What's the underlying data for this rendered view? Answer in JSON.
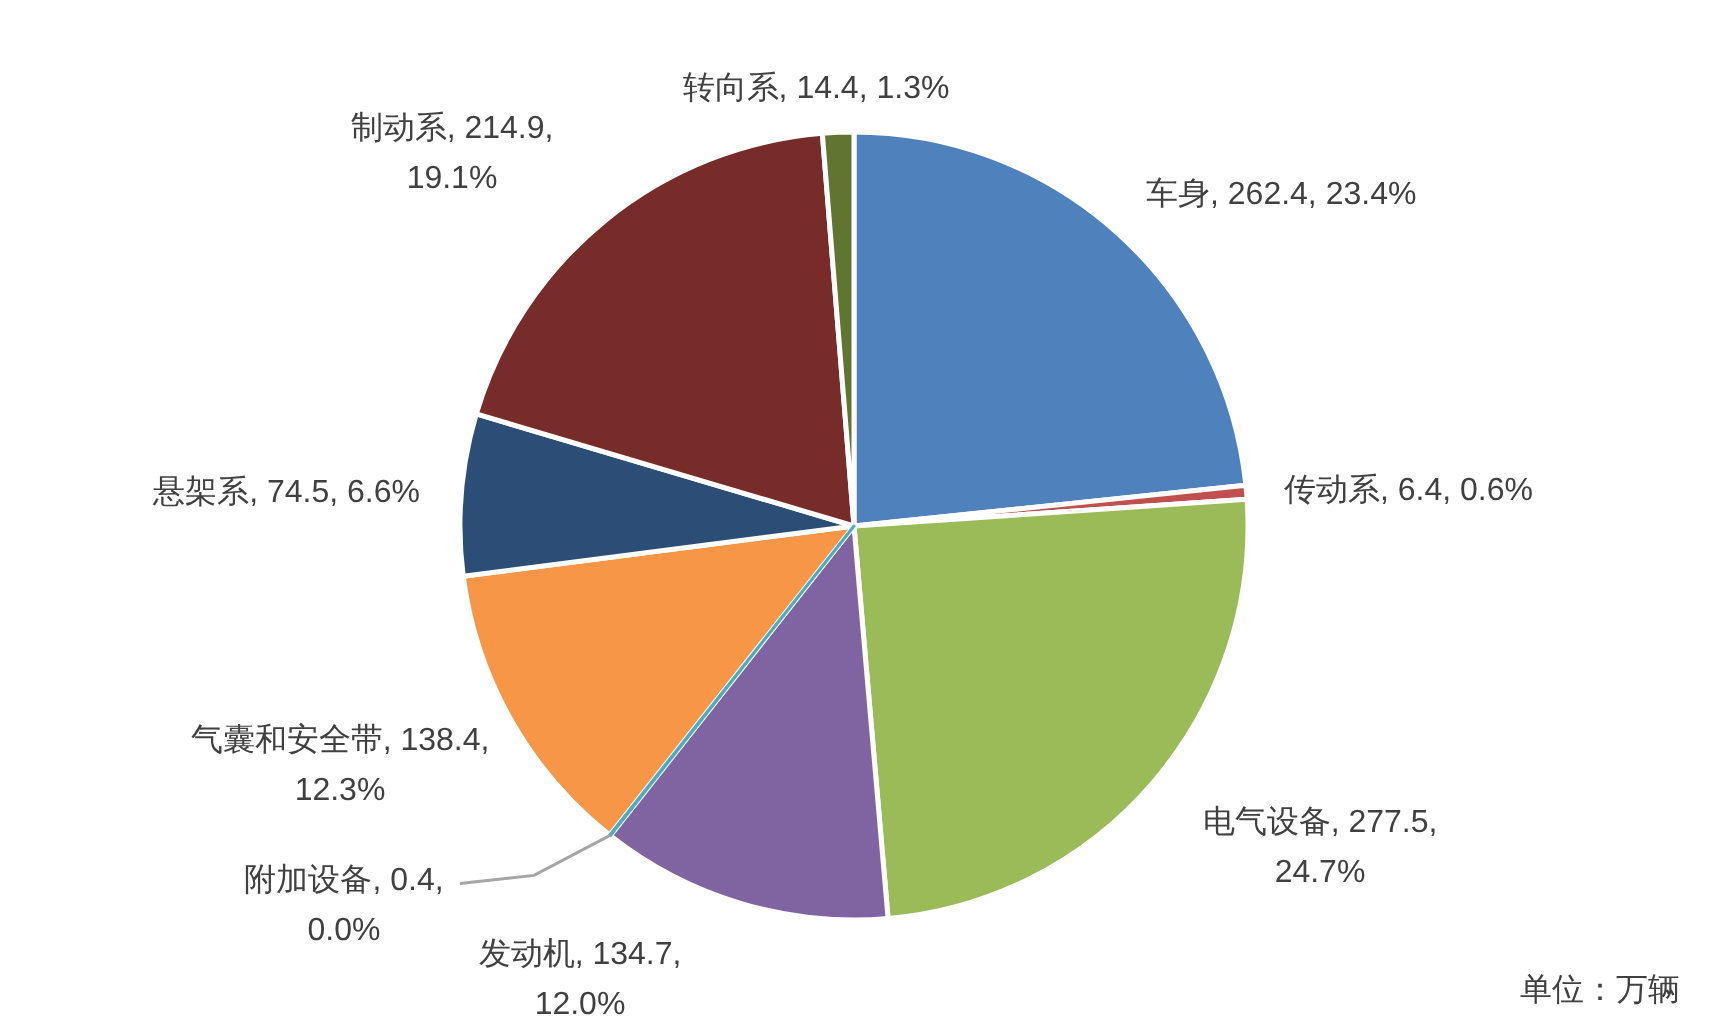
{
  "chart_data": {
    "type": "pie",
    "categories": [
      "车身",
      "传动系",
      "电气设备",
      "发动机",
      "附加设备",
      "气囊和安全带",
      "悬架系",
      "制动系",
      "转向系"
    ],
    "values": [
      262.4,
      6.4,
      277.5,
      134.7,
      0.4,
      138.4,
      74.5,
      214.9,
      14.4
    ],
    "colors": [
      "#4f81bd",
      "#c0504d",
      "#9bbb59",
      "#8064a2",
      "#4bacc6",
      "#f79646",
      "#2c4d75",
      "#772c2a",
      "#5f7530"
    ],
    "value_labels": [
      "262.4, 23.4%",
      "6.4, 0.6%",
      "277.5, 24.7%",
      "134.7, 12.0%",
      "0.4, 0.0%",
      "138.4, 12.3%",
      "74.5, 6.6%",
      "214.9, 19.1%",
      "14.4, 1.3%"
    ],
    "annotations": [
      "单位：万辆"
    ]
  }
}
